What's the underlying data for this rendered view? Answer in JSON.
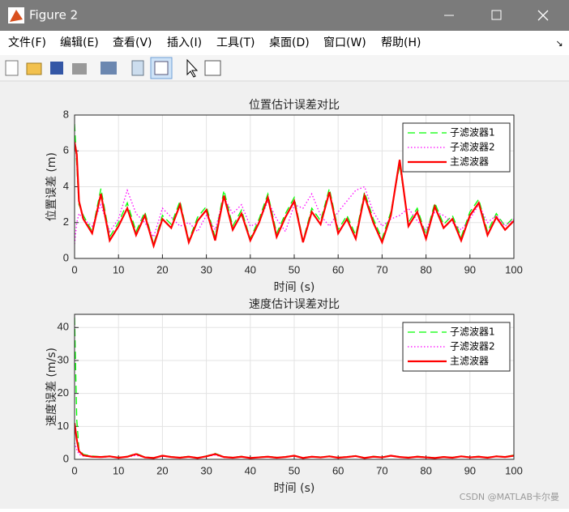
{
  "window": {
    "title": "Figure 2",
    "menu": [
      "文件(F)",
      "编辑(E)",
      "查看(V)",
      "插入(I)",
      "工具(T)",
      "桌面(D)",
      "窗口(W)",
      "帮助(H)"
    ],
    "watermark": "CSDN @MATLAB卡尔曼"
  },
  "chart_data": [
    {
      "type": "line",
      "title": "位置估计误差对比",
      "xlabel": "时间 (s)",
      "ylabel": "位置误差 (m)",
      "x": [
        0,
        0.5,
        1,
        2,
        4,
        6,
        8,
        10,
        12,
        14,
        16,
        18,
        20,
        22,
        24,
        26,
        28,
        30,
        32,
        34,
        36,
        38,
        40,
        42,
        44,
        46,
        48,
        50,
        52,
        54,
        56,
        58,
        60,
        62,
        64,
        66,
        68,
        70,
        72,
        74,
        76,
        78,
        80,
        82,
        84,
        86,
        88,
        90,
        92,
        94,
        96,
        98,
        100
      ],
      "xlim": [
        0,
        100
      ],
      "xticks": [
        0,
        10,
        20,
        30,
        40,
        50,
        60,
        70,
        80,
        90,
        100
      ],
      "ylim": [
        0,
        8
      ],
      "yticks": [
        0,
        2,
        4,
        6,
        8
      ],
      "grid": true,
      "legend": "northeast",
      "series": [
        {
          "name": "子滤波器1",
          "color": "#00ff00",
          "linestyle": "dashed",
          "values": [
            7.5,
            5.2,
            3.0,
            2.4,
            1.5,
            3.9,
            1.2,
            2.0,
            3.1,
            1.5,
            2.6,
            0.8,
            2.4,
            1.9,
            3.2,
            1.0,
            2.3,
            2.9,
            1.2,
            3.8,
            1.8,
            2.7,
            1.1,
            2.2,
            3.6,
            1.4,
            2.5,
            3.4,
            1.0,
            2.8,
            2.1,
            3.9,
            1.6,
            2.4,
            1.3,
            3.7,
            2.2,
            1.1,
            2.6,
            5.2,
            2.0,
            2.8,
            1.3,
            3.1,
            1.9,
            2.4,
            1.2,
            2.6,
            3.3,
            1.5,
            2.5,
            1.8,
            2.3
          ]
        },
        {
          "name": "子滤波器2",
          "color": "#ff00ff",
          "linestyle": "dotted",
          "values": [
            0.8,
            2.0,
            2.5,
            2.2,
            1.8,
            3.0,
            1.5,
            2.2,
            3.8,
            2.5,
            2.0,
            1.2,
            2.8,
            2.3,
            1.8,
            2.0,
            1.5,
            2.4,
            1.6,
            3.4,
            2.5,
            3.0,
            1.8,
            2.0,
            3.2,
            2.2,
            1.5,
            3.0,
            2.8,
            3.6,
            2.4,
            1.8,
            2.6,
            3.2,
            3.8,
            4.0,
            2.6,
            1.8,
            2.2,
            2.4,
            2.8,
            2.1,
            1.6,
            2.6,
            2.4,
            2.0,
            1.6,
            2.2,
            3.0,
            2.0,
            2.4,
            1.8,
            2.2
          ]
        },
        {
          "name": "主滤波器",
          "color": "#ff0000",
          "linestyle": "solid",
          "values": [
            6.5,
            5.8,
            3.2,
            2.2,
            1.4,
            3.6,
            1.0,
            1.8,
            2.8,
            1.3,
            2.4,
            0.7,
            2.2,
            1.7,
            3.0,
            0.9,
            2.1,
            2.7,
            1.0,
            3.5,
            1.6,
            2.5,
            1.0,
            2.0,
            3.4,
            1.2,
            2.3,
            3.2,
            0.9,
            2.6,
            1.9,
            3.7,
            1.4,
            2.2,
            1.1,
            3.5,
            2.0,
            0.9,
            2.4,
            5.5,
            1.8,
            2.6,
            1.1,
            2.9,
            1.7,
            2.2,
            1.0,
            2.4,
            3.1,
            1.3,
            2.3,
            1.6,
            2.1
          ]
        }
      ]
    },
    {
      "type": "line",
      "title": "速度估计误差对比",
      "xlabel": "时间 (s)",
      "ylabel": "速度误差 (m/s)",
      "x": [
        0,
        0.5,
        1,
        2,
        4,
        6,
        8,
        10,
        12,
        14,
        16,
        18,
        20,
        22,
        24,
        26,
        28,
        30,
        32,
        34,
        36,
        38,
        40,
        42,
        44,
        46,
        48,
        50,
        52,
        54,
        56,
        58,
        60,
        62,
        64,
        66,
        68,
        70,
        72,
        74,
        76,
        78,
        80,
        82,
        84,
        86,
        88,
        90,
        92,
        94,
        96,
        98,
        100
      ],
      "xlim": [
        0,
        100
      ],
      "xticks": [
        0,
        10,
        20,
        30,
        40,
        50,
        60,
        70,
        80,
        90,
        100
      ],
      "ylim": [
        0,
        44
      ],
      "yticks": [
        0,
        10,
        20,
        30,
        40
      ],
      "grid": true,
      "legend": "northeast",
      "series": [
        {
          "name": "子滤波器1",
          "color": "#00ff00",
          "linestyle": "dashed",
          "values": [
            43,
            12,
            3.0,
            1.5,
            1.0,
            0.8,
            1.0,
            0.6,
            0.9,
            1.8,
            0.7,
            0.5,
            1.2,
            0.8,
            0.6,
            0.9,
            0.5,
            1.0,
            1.8,
            0.8,
            0.6,
            0.9,
            0.5,
            0.7,
            0.9,
            0.6,
            0.8,
            1.2,
            0.5,
            0.9,
            0.7,
            1.0,
            0.6,
            0.8,
            1.1,
            0.5,
            0.9,
            0.7,
            1.2,
            0.8,
            0.6,
            0.9,
            0.7,
            0.5,
            0.8,
            0.6,
            1.0,
            0.7,
            0.9,
            0.6,
            1.0,
            0.8,
            1.3
          ]
        },
        {
          "name": "子滤波器2",
          "color": "#ff00ff",
          "linestyle": "dotted",
          "values": [
            5,
            3,
            1.5,
            1.0,
            0.8,
            0.6,
            0.8,
            0.5,
            0.7,
            1.2,
            0.6,
            0.4,
            0.9,
            0.7,
            0.5,
            0.8,
            0.4,
            0.9,
            1.3,
            0.6,
            0.5,
            0.8,
            0.4,
            0.6,
            0.7,
            0.5,
            0.7,
            1.0,
            0.4,
            0.8,
            0.6,
            0.9,
            0.5,
            0.7,
            0.9,
            0.4,
            0.8,
            0.6,
            1.0,
            0.7,
            0.5,
            0.8,
            0.6,
            0.4,
            0.7,
            0.5,
            0.9,
            0.6,
            0.8,
            0.5,
            0.9,
            0.7,
            1.0
          ]
        },
        {
          "name": "主滤波器",
          "color": "#ff0000",
          "linestyle": "solid",
          "values": [
            11,
            6,
            2.5,
            1.2,
            0.8,
            0.7,
            0.9,
            0.5,
            0.8,
            1.6,
            0.6,
            0.4,
            1.1,
            0.7,
            0.5,
            0.8,
            0.4,
            0.9,
            1.6,
            0.7,
            0.5,
            0.8,
            0.4,
            0.6,
            0.8,
            0.5,
            0.7,
            1.1,
            0.4,
            0.8,
            0.6,
            0.9,
            0.5,
            0.7,
            1.0,
            0.4,
            0.8,
            0.6,
            1.1,
            0.7,
            0.5,
            0.8,
            0.6,
            0.4,
            0.7,
            0.5,
            0.9,
            0.6,
            0.8,
            0.5,
            0.9,
            0.7,
            1.1
          ]
        }
      ]
    }
  ]
}
